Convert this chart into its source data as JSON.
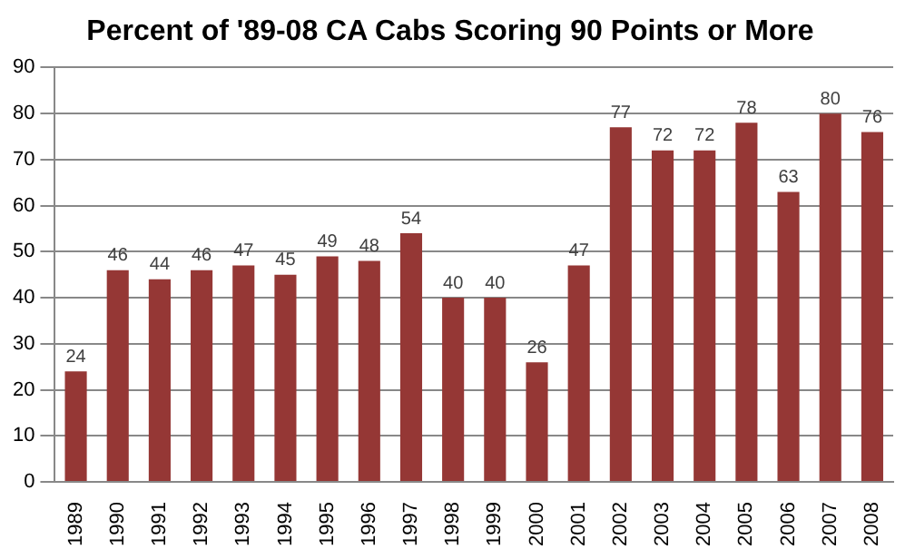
{
  "chart_data": {
    "type": "bar",
    "title": "Percent of '89-08 CA Cabs Scoring 90 Points or More",
    "categories": [
      "1989",
      "1990",
      "1991",
      "1992",
      "1993",
      "1994",
      "1995",
      "1996",
      "1997",
      "1998",
      "1999",
      "2000",
      "2001",
      "2002",
      "2003",
      "2004",
      "2005",
      "2006",
      "2007",
      "2008"
    ],
    "values": [
      24,
      46,
      44,
      46,
      47,
      45,
      49,
      48,
      54,
      40,
      40,
      26,
      47,
      77,
      72,
      72,
      78,
      63,
      80,
      76
    ],
    "color": "#953735",
    "ylim": [
      0,
      90
    ],
    "yticks": [
      0,
      10,
      20,
      30,
      40,
      50,
      60,
      70,
      80,
      90
    ],
    "grid": "y",
    "data_labels": true,
    "legend": false
  }
}
